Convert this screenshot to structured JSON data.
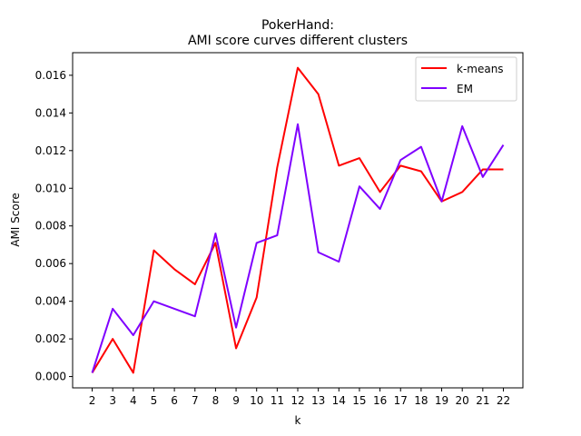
{
  "chart_data": {
    "type": "line",
    "title": "PokerHand:",
    "subtitle": "AMI score curves different clusters",
    "xlabel": "k",
    "ylabel": "AMI Score",
    "x": [
      2,
      3,
      4,
      5,
      6,
      7,
      8,
      9,
      10,
      11,
      12,
      13,
      14,
      15,
      16,
      17,
      18,
      19,
      20,
      21,
      22
    ],
    "x_ticks": [
      "2",
      "3",
      "4",
      "5",
      "6",
      "7",
      "8",
      "9",
      "10",
      "11",
      "12",
      "13",
      "14",
      "15",
      "16",
      "17",
      "18",
      "19",
      "20",
      "21",
      "22"
    ],
    "xlim": [
      1.05,
      22.95
    ],
    "ylim": [
      -0.0006,
      0.0172
    ],
    "y_ticks": [
      0.0,
      0.002,
      0.004,
      0.006,
      0.008,
      0.01,
      0.012,
      0.014,
      0.016
    ],
    "y_tick_labels": [
      "0.000",
      "0.002",
      "0.004",
      "0.006",
      "0.008",
      "0.010",
      "0.012",
      "0.014",
      "0.016"
    ],
    "grid": false,
    "legend_position": "top-right",
    "series": [
      {
        "name": "k-means",
        "color": "#ff0000",
        "values": [
          0.0002,
          0.002,
          0.0002,
          0.0067,
          0.0057,
          0.0049,
          0.0071,
          0.0015,
          0.0042,
          0.0111,
          0.0164,
          0.015,
          0.0112,
          0.0116,
          0.0098,
          0.0112,
          0.0109,
          0.0093,
          0.0098,
          0.011,
          0.011
        ]
      },
      {
        "name": "EM",
        "color": "#7f00ff",
        "values": [
          0.0002,
          0.0036,
          0.0022,
          0.004,
          0.0036,
          0.0032,
          0.0076,
          0.0026,
          0.0071,
          0.0075,
          0.0134,
          0.0066,
          0.0061,
          0.0101,
          0.0089,
          0.0115,
          0.0122,
          0.0093,
          0.0133,
          0.0106,
          0.0123
        ]
      }
    ]
  }
}
